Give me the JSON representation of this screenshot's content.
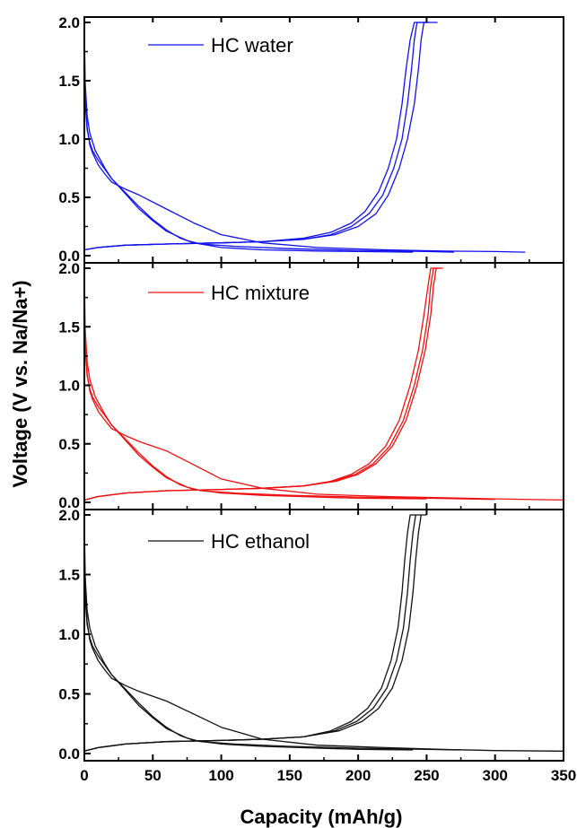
{
  "chart_data": {
    "type": "line",
    "xlabel": "Capacity (mAh/g)",
    "ylabel": "Voltage (V vs. Na/Na+)",
    "xlim": [
      0,
      350
    ],
    "x_ticks": [
      "0",
      "50",
      "100",
      "150",
      "200",
      "250",
      "300",
      "350"
    ],
    "y_ticks": [
      "0.0",
      "0.5",
      "1.0",
      "1.5",
      "2.0"
    ],
    "ylim": [
      0,
      2.0
    ],
    "grid": false,
    "panels": [
      {
        "legend": "HC water",
        "color": "#1111ee",
        "series": [
          {
            "x": [
              0,
              0.3,
              1,
              2,
              4,
              6,
              10,
              15,
              20,
              30,
              40,
              60,
              80,
              100,
              130,
              170,
              220,
              260,
              300,
              322
            ],
            "y": [
              2.0,
              1.6,
              1.3,
              1.1,
              0.95,
              0.88,
              0.78,
              0.7,
              0.63,
              0.57,
              0.52,
              0.4,
              0.28,
              0.18,
              0.11,
              0.07,
              0.05,
              0.04,
              0.035,
              0.03
            ]
          },
          {
            "x": [
              0,
              0.3,
              1,
              2,
              4,
              6,
              10,
              15,
              20,
              30,
              40,
              50,
              60,
              70,
              80,
              100,
              130,
              170,
              200,
              240
            ],
            "y": [
              2.0,
              1.5,
              1.25,
              1.08,
              0.97,
              0.9,
              0.82,
              0.74,
              0.66,
              0.54,
              0.42,
              0.31,
              0.22,
              0.15,
              0.11,
              0.07,
              0.05,
              0.04,
              0.035,
              0.03
            ]
          },
          {
            "x": [
              0,
              0.5,
              2,
              4,
              8,
              15,
              20,
              30,
              40,
              50,
              60,
              75,
              85,
              110,
              150,
              200,
              250,
              270
            ],
            "y": [
              2.0,
              1.5,
              1.2,
              1.05,
              0.9,
              0.75,
              0.66,
              0.53,
              0.4,
              0.3,
              0.21,
              0.13,
              0.1,
              0.08,
              0.06,
              0.045,
              0.035,
              0.03
            ]
          },
          {
            "x": [
              0,
              10,
              30,
              60,
              100,
              130,
              160,
              180,
              195,
              205,
              215,
              222,
              228,
              232,
              235,
              238,
              241,
              258
            ],
            "y": [
              0.05,
              0.07,
              0.09,
              0.1,
              0.11,
              0.12,
              0.15,
              0.2,
              0.28,
              0.38,
              0.55,
              0.75,
              1.0,
              1.3,
              1.6,
              1.85,
              2.0,
              2.0
            ]
          },
          {
            "x": [
              0,
              10,
              30,
              60,
              100,
              130,
              160,
              180,
              195,
              208,
              218,
              226,
              232,
              236,
              239,
              241,
              243,
              250
            ],
            "y": [
              0.05,
              0.07,
              0.09,
              0.1,
              0.11,
              0.12,
              0.14,
              0.18,
              0.25,
              0.36,
              0.52,
              0.75,
              1.0,
              1.3,
              1.6,
              1.85,
              2.0,
              2.0
            ]
          },
          {
            "x": [
              0,
              10,
              30,
              60,
              100,
              130,
              160,
              183,
              200,
              213,
              222,
              230,
              236,
              241,
              244,
              246,
              248,
              252
            ],
            "y": [
              0.05,
              0.07,
              0.09,
              0.1,
              0.11,
              0.12,
              0.14,
              0.18,
              0.25,
              0.36,
              0.52,
              0.75,
              1.0,
              1.3,
              1.6,
              1.85,
              2.0,
              2.0
            ]
          }
        ]
      },
      {
        "legend": "HC mixture",
        "color": "#ee1111",
        "series": [
          {
            "x": [
              0,
              0.3,
              1,
              2,
              4,
              6,
              10,
              15,
              20,
              30,
              40,
              60,
              80,
              100,
              130,
              170,
              220,
              260,
              300,
              350
            ],
            "y": [
              2.0,
              1.6,
              1.3,
              1.1,
              0.95,
              0.88,
              0.78,
              0.7,
              0.63,
              0.57,
              0.52,
              0.44,
              0.32,
              0.2,
              0.12,
              0.07,
              0.05,
              0.04,
              0.03,
              0.02
            ]
          },
          {
            "x": [
              0,
              0.3,
              1,
              2,
              4,
              6,
              10,
              15,
              20,
              30,
              40,
              50,
              60,
              70,
              80,
              100,
              130,
              170,
              200,
              250
            ],
            "y": [
              2.0,
              1.5,
              1.25,
              1.08,
              0.97,
              0.9,
              0.82,
              0.74,
              0.66,
              0.54,
              0.42,
              0.31,
              0.22,
              0.15,
              0.11,
              0.08,
              0.06,
              0.045,
              0.035,
              0.03
            ]
          },
          {
            "x": [
              0,
              0.5,
              2,
              4,
              8,
              15,
              20,
              30,
              40,
              50,
              60,
              75,
              85,
              110,
              150,
              200,
              250,
              300
            ],
            "y": [
              2.0,
              1.5,
              1.2,
              1.05,
              0.9,
              0.75,
              0.66,
              0.53,
              0.4,
              0.3,
              0.21,
              0.13,
              0.1,
              0.08,
              0.06,
              0.045,
              0.035,
              0.025
            ]
          },
          {
            "x": [
              0,
              10,
              30,
              60,
              100,
              130,
              160,
              180,
              195,
              208,
              220,
              230,
              238,
              244,
              248,
              251,
              253,
              258
            ],
            "y": [
              0.02,
              0.05,
              0.08,
              0.1,
              0.11,
              0.12,
              0.14,
              0.18,
              0.24,
              0.33,
              0.48,
              0.7,
              1.0,
              1.3,
              1.6,
              1.85,
              2.0,
              2.0
            ]
          },
          {
            "x": [
              0,
              10,
              30,
              60,
              100,
              130,
              160,
              182,
              198,
              211,
              223,
              233,
              241,
              247,
              251,
              253,
              255,
              260
            ],
            "y": [
              0.02,
              0.05,
              0.08,
              0.1,
              0.11,
              0.12,
              0.14,
              0.18,
              0.24,
              0.33,
              0.48,
              0.7,
              1.0,
              1.3,
              1.6,
              1.85,
              2.0,
              2.0
            ]
          },
          {
            "x": [
              0,
              10,
              30,
              60,
              100,
              130,
              160,
              184,
              200,
              213,
              225,
              235,
              243,
              249,
              253,
              255,
              257,
              262
            ],
            "y": [
              0.02,
              0.05,
              0.08,
              0.1,
              0.11,
              0.12,
              0.14,
              0.18,
              0.24,
              0.33,
              0.48,
              0.7,
              1.0,
              1.3,
              1.6,
              1.85,
              2.0,
              2.0
            ]
          }
        ]
      },
      {
        "legend": "HC ethanol",
        "color": "#111111",
        "series": [
          {
            "x": [
              0,
              0.3,
              1,
              2,
              4,
              6,
              10,
              15,
              20,
              30,
              40,
              60,
              80,
              100,
              130,
              170,
              220,
              260,
              300,
              350
            ],
            "y": [
              2.0,
              1.6,
              1.3,
              1.1,
              0.95,
              0.88,
              0.78,
              0.7,
              0.63,
              0.57,
              0.52,
              0.44,
              0.33,
              0.22,
              0.12,
              0.07,
              0.05,
              0.035,
              0.025,
              0.02
            ]
          },
          {
            "x": [
              0,
              0.3,
              1,
              2,
              4,
              6,
              10,
              15,
              20,
              30,
              40,
              50,
              60,
              70,
              80,
              100,
              130,
              170,
              200,
              240
            ],
            "y": [
              2.0,
              1.5,
              1.25,
              1.08,
              0.97,
              0.9,
              0.82,
              0.74,
              0.66,
              0.54,
              0.42,
              0.31,
              0.22,
              0.15,
              0.11,
              0.08,
              0.06,
              0.045,
              0.035,
              0.03
            ]
          },
          {
            "x": [
              0,
              0.5,
              2,
              4,
              8,
              15,
              20,
              30,
              40,
              50,
              60,
              75,
              85,
              110,
              150,
              200,
              250,
              275
            ],
            "y": [
              2.0,
              1.5,
              1.2,
              1.05,
              0.9,
              0.75,
              0.66,
              0.53,
              0.4,
              0.3,
              0.21,
              0.13,
              0.1,
              0.08,
              0.06,
              0.045,
              0.035,
              0.03
            ]
          },
          {
            "x": [
              0,
              10,
              30,
              60,
              100,
              130,
              160,
              180,
              195,
              207,
              217,
              224,
              229,
              232,
              234,
              236,
              238,
              242
            ],
            "y": [
              0.02,
              0.05,
              0.08,
              0.1,
              0.11,
              0.12,
              0.14,
              0.19,
              0.27,
              0.38,
              0.55,
              0.78,
              1.05,
              1.35,
              1.62,
              1.85,
              2.0,
              2.0
            ]
          },
          {
            "x": [
              0,
              10,
              30,
              60,
              100,
              130,
              160,
              183,
              199,
              211,
              221,
              228,
              233,
              236,
              238,
              240,
              242,
              246
            ],
            "y": [
              0.02,
              0.05,
              0.08,
              0.1,
              0.11,
              0.12,
              0.14,
              0.19,
              0.27,
              0.38,
              0.55,
              0.78,
              1.05,
              1.35,
              1.62,
              1.85,
              2.0,
              2.0
            ]
          },
          {
            "x": [
              0,
              10,
              30,
              60,
              100,
              130,
              160,
              186,
              203,
              215,
              225,
              232,
              237,
              240,
              242,
              244,
              246,
              250
            ],
            "y": [
              0.02,
              0.05,
              0.08,
              0.1,
              0.11,
              0.12,
              0.14,
              0.19,
              0.27,
              0.38,
              0.55,
              0.78,
              1.05,
              1.35,
              1.62,
              1.85,
              2.0,
              2.0
            ]
          }
        ]
      }
    ]
  }
}
